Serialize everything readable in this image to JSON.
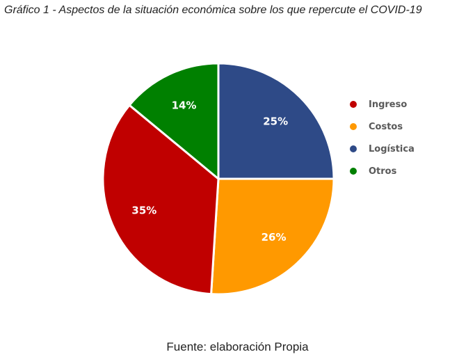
{
  "title": "Gráfico 1 - Aspectos de la situación económica sobre los que repercute el COVID-19",
  "source": "Fuente: elaboración Propia",
  "chart_data": {
    "type": "pie",
    "slices": [
      {
        "name": "Logística",
        "value": 25,
        "label": "25%",
        "color": "#2E4A87"
      },
      {
        "name": "Costos",
        "value": 26,
        "label": "26%",
        "color": "#FF9900"
      },
      {
        "name": "Ingreso",
        "value": 35,
        "label": "35%",
        "color": "#C00000"
      },
      {
        "name": "Otros",
        "value": 14,
        "label": "14%",
        "color": "#008000"
      }
    ],
    "legend": {
      "position": "right",
      "entries": [
        {
          "name": "Ingreso",
          "color": "#C00000"
        },
        {
          "name": "Costos",
          "color": "#FF9900"
        },
        {
          "name": "Logística",
          "color": "#2E4A87"
        },
        {
          "name": "Otros",
          "color": "#008000"
        }
      ]
    }
  }
}
